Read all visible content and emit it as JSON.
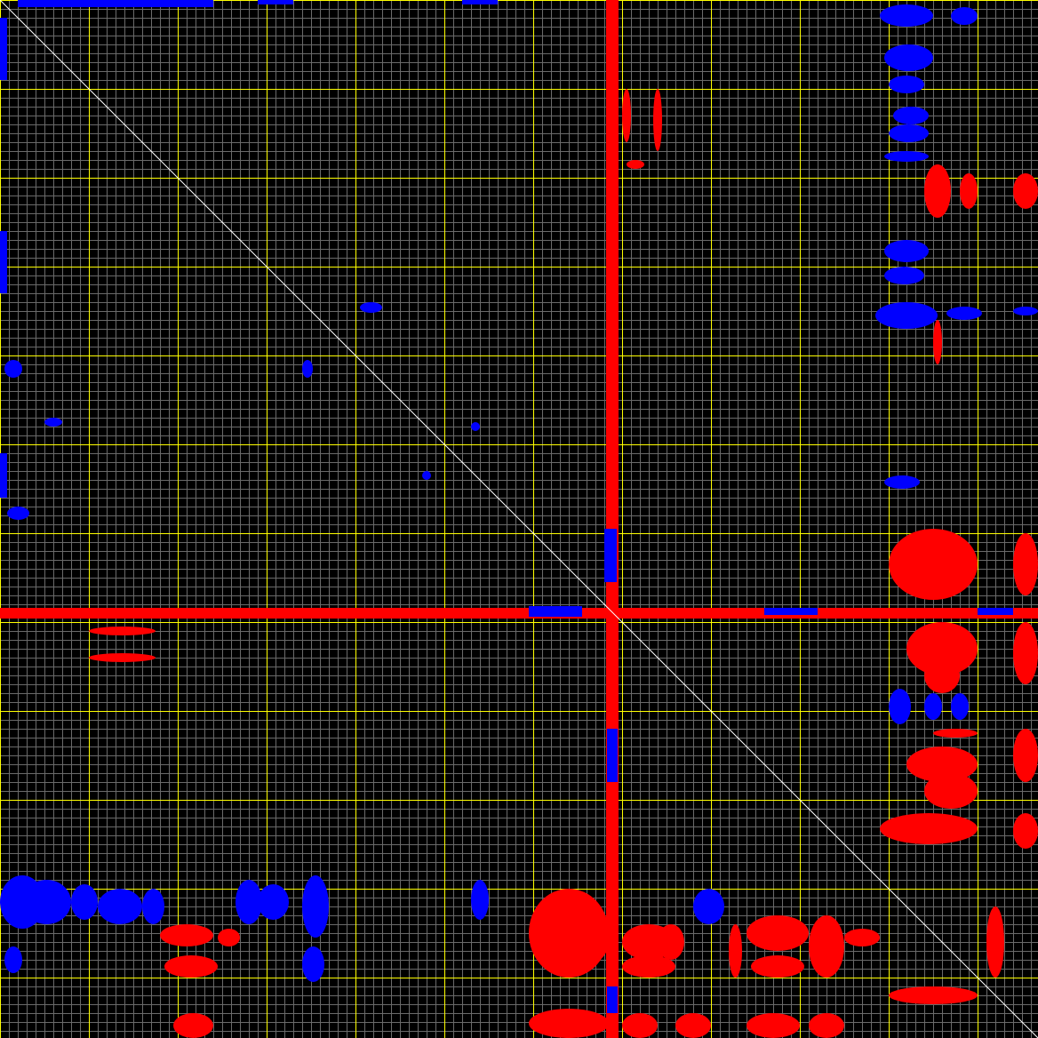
{
  "colors": {
    "background": "#000000",
    "minor_grid": "#6a6a6a",
    "major_grid": "#ffff00",
    "diagonal": "#ffffff",
    "positive": "#ff0000",
    "negative": "#0000ff"
  }
}
